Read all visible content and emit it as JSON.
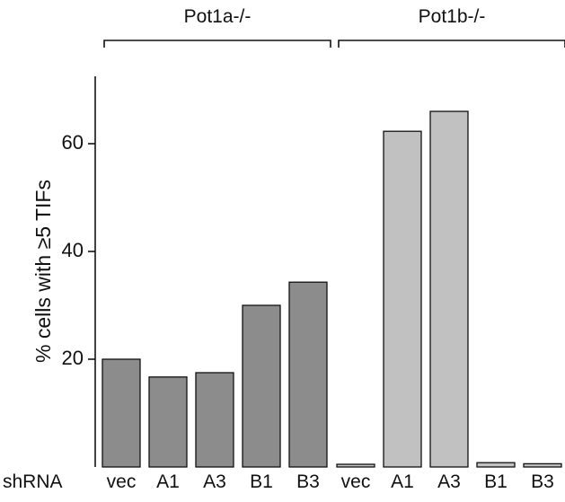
{
  "chart_data": {
    "type": "bar",
    "ylabel": "% cells with ≥5 TIFs",
    "ylim": [
      0,
      72
    ],
    "yticks": [
      20,
      40,
      60
    ],
    "row_label": "shRNA",
    "grid": false,
    "groups": [
      {
        "name": "Pot1a-/-",
        "color": "#8c8c8c",
        "categories": [
          "vec",
          "A1",
          "A3",
          "B1",
          "B3"
        ],
        "values": [
          20,
          16.7,
          17.5,
          30,
          34.3
        ]
      },
      {
        "name": "Pot1b-/-",
        "color": "#c1c1c1",
        "categories": [
          "vec",
          "A1",
          "A3",
          "B1",
          "B3"
        ],
        "values": [
          0.5,
          62.3,
          66,
          0.8,
          0.6
        ]
      }
    ]
  }
}
